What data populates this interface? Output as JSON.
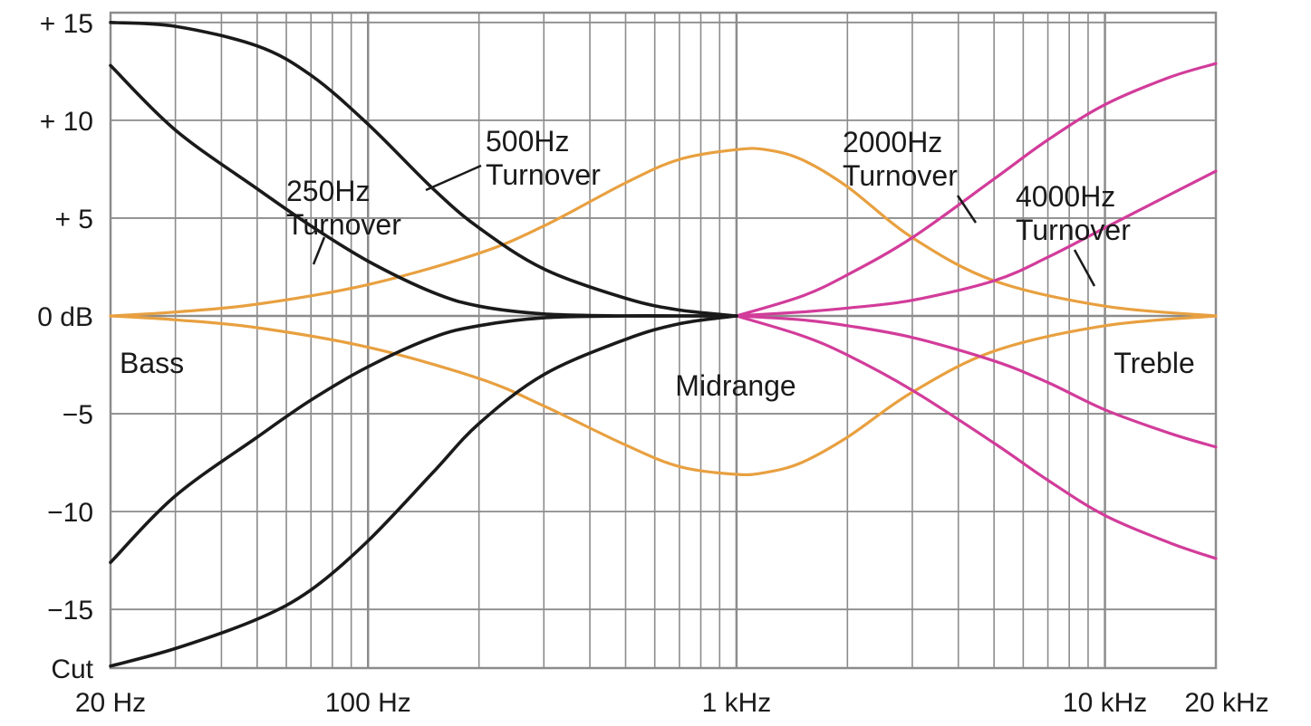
{
  "chart_data": {
    "type": "line",
    "x_scale": "log",
    "xlim": [
      20,
      20000
    ],
    "ylim": [
      -18,
      15.5
    ],
    "grid": true,
    "x_tick_labels": [
      {
        "value": 20,
        "label": "20 Hz"
      },
      {
        "value": 100,
        "label": "100 Hz"
      },
      {
        "value": 1000,
        "label": "1 kHz"
      },
      {
        "value": 10000,
        "label": "10 kHz"
      },
      {
        "value": 20000,
        "label": "20 kHz"
      }
    ],
    "y_tick_labels": [
      {
        "value": 15,
        "label": "+ 15"
      },
      {
        "value": 10,
        "label": "+ 10"
      },
      {
        "value": 5,
        "label": "+ 5"
      },
      {
        "value": 0,
        "label": "0 dB"
      },
      {
        "value": -5,
        "label": "−5"
      },
      {
        "value": -10,
        "label": "−10"
      },
      {
        "value": -15,
        "label": "−15"
      },
      {
        "value": -18,
        "label": "Cut"
      }
    ],
    "colors": {
      "bass": "#1a1a1a",
      "midrange": "#e8a040",
      "treble": "#d23c9a",
      "grid": "#8c8c8c"
    },
    "annotations": [
      {
        "key": "bass",
        "text": "Bass",
        "color": "#1a1a1a"
      },
      {
        "key": "midrange",
        "text": "Midrange",
        "color": "#e8a040"
      },
      {
        "key": "treble",
        "text": "Treble",
        "color": "#d23c9a"
      },
      {
        "key": "t500",
        "text": [
          "500Hz",
          "Turnover"
        ],
        "color": "#1a1a1a"
      },
      {
        "key": "t250",
        "text": [
          "250Hz",
          "Turnover"
        ],
        "color": "#1a1a1a"
      },
      {
        "key": "t2000",
        "text": [
          "2000Hz",
          "Turnover"
        ],
        "color": "#1a1a1a"
      },
      {
        "key": "t4000",
        "text": [
          "4000Hz",
          "Turnover"
        ],
        "color": "#1a1a1a"
      }
    ],
    "series": [
      {
        "group": "bass",
        "x": [
          20,
          30,
          50,
          70,
          100,
          150,
          200,
          300,
          500,
          700,
          1000
        ],
        "y": [
          15,
          14.8,
          13.8,
          12.3,
          9.8,
          6.5,
          4.5,
          2.4,
          0.9,
          0.3,
          0
        ]
      },
      {
        "group": "bass",
        "x": [
          20,
          30,
          50,
          70,
          100,
          150,
          200,
          300,
          500,
          700,
          1000
        ],
        "y": [
          12.8,
          9.5,
          6.5,
          4.6,
          2.8,
          1.2,
          0.5,
          0.1,
          0,
          0,
          0
        ]
      },
      {
        "group": "bass",
        "x": [
          20,
          30,
          50,
          70,
          100,
          150,
          200,
          300,
          500,
          700,
          1000
        ],
        "y": [
          -12.6,
          -9.2,
          -6.2,
          -4.3,
          -2.6,
          -1.1,
          -0.5,
          -0.1,
          0,
          0,
          0
        ]
      },
      {
        "group": "bass",
        "x": [
          20,
          30,
          50,
          70,
          100,
          150,
          200,
          300,
          500,
          700,
          1000
        ],
        "y": [
          -17.9,
          -17.0,
          -15.5,
          -14.0,
          -11.5,
          -8.0,
          -5.5,
          -3.0,
          -1.2,
          -0.4,
          0
        ]
      },
      {
        "group": "midrange",
        "x": [
          20,
          30,
          50,
          100,
          200,
          300,
          500,
          700,
          1000,
          1200,
          1500,
          2000,
          3000,
          5000,
          10000,
          20000
        ],
        "y": [
          0,
          0.2,
          0.6,
          1.6,
          3.2,
          4.6,
          6.8,
          8.0,
          8.5,
          8.5,
          8.0,
          6.6,
          4.0,
          1.8,
          0.5,
          0
        ]
      },
      {
        "group": "midrange",
        "x": [
          20,
          30,
          50,
          100,
          200,
          300,
          500,
          700,
          1000,
          1200,
          1500,
          2000,
          3000,
          5000,
          10000,
          20000
        ],
        "y": [
          0,
          -0.2,
          -0.6,
          -1.6,
          -3.2,
          -4.6,
          -6.6,
          -7.7,
          -8.1,
          -8.0,
          -7.5,
          -6.2,
          -3.9,
          -1.8,
          -0.5,
          0
        ]
      },
      {
        "group": "treble",
        "x": [
          1000,
          1500,
          2000,
          3000,
          5000,
          7000,
          10000,
          15000,
          20000
        ],
        "y": [
          0,
          1.0,
          2.1,
          4.0,
          7.0,
          9.0,
          10.8,
          12.2,
          12.9
        ]
      },
      {
        "group": "treble",
        "x": [
          1000,
          1500,
          2000,
          3000,
          5000,
          7000,
          10000,
          15000,
          20000
        ],
        "y": [
          0,
          0.2,
          0.4,
          0.8,
          1.8,
          3.0,
          4.5,
          6.2,
          7.4
        ]
      },
      {
        "group": "treble",
        "x": [
          1000,
          1500,
          2000,
          3000,
          5000,
          7000,
          10000,
          15000,
          20000
        ],
        "y": [
          0,
          -0.2,
          -0.5,
          -1.1,
          -2.3,
          -3.4,
          -4.8,
          -6.0,
          -6.7
        ]
      },
      {
        "group": "treble",
        "x": [
          1000,
          1500,
          2000,
          3000,
          5000,
          7000,
          10000,
          15000,
          20000
        ],
        "y": [
          0,
          -1.0,
          -2.0,
          -3.8,
          -6.5,
          -8.4,
          -10.2,
          -11.6,
          -12.4
        ]
      }
    ]
  }
}
